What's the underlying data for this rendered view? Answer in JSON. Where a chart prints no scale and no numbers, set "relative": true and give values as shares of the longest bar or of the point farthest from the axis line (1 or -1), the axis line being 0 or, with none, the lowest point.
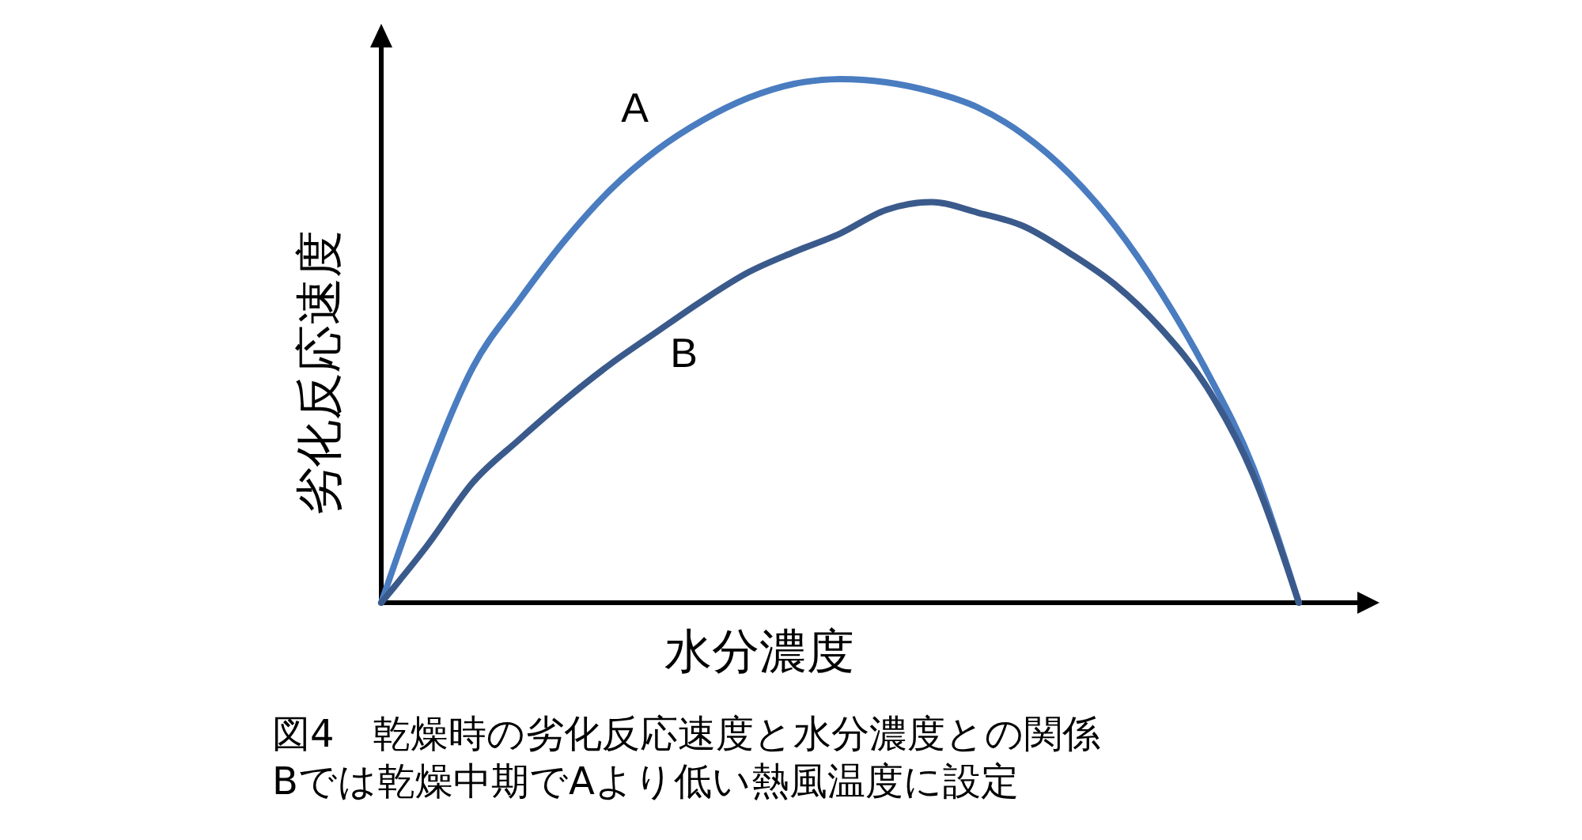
{
  "chart_data": {
    "type": "line",
    "relative": true,
    "xlabel": "水分濃度",
    "ylabel": "劣化反応速度",
    "categories": [
      null,
      null,
      null,
      null,
      null,
      null,
      null,
      null,
      null,
      null,
      null,
      null,
      null,
      null,
      null,
      null,
      null,
      null,
      null,
      null,
      null
    ],
    "series": [
      {
        "name": "A",
        "color": "#4a7cc0",
        "values": [
          0,
          0.245,
          0.45,
          0.577,
          0.692,
          0.789,
          0.864,
          0.921,
          0.964,
          0.991,
          1,
          0.994,
          0.976,
          0.946,
          0.894,
          0.819,
          0.719,
          0.592,
          0.441,
          0.26,
          0
        ]
      },
      {
        "name": "B",
        "color": "#3b5a8c",
        "values": [
          0,
          0.109,
          0.23,
          0.311,
          0.387,
          0.456,
          0.517,
          0.577,
          0.631,
          0.67,
          0.705,
          0.75,
          0.765,
          0.745,
          0.719,
          0.668,
          0.607,
          0.523,
          0.411,
          0.245,
          0
        ]
      }
    ],
    "annotations": [
      "図4　乾燥時の劣化反応速度と水分濃度との関係",
      "Bでは乾燥中期でAより低い熱風温度に設定"
    ],
    "marker": "none",
    "line_style": "solid"
  }
}
